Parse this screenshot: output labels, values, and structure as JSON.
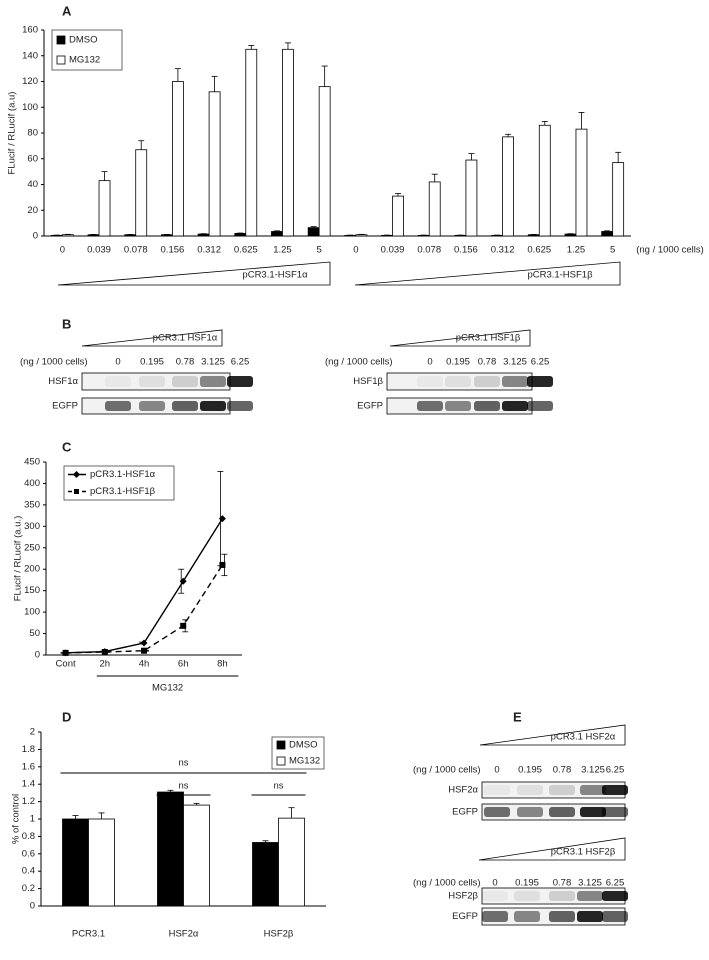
{
  "chart_data": [
    {
      "type": "bar",
      "panel": "A",
      "y_label": "FLucif / RLucif (a.u)",
      "x_unit": "(ng / 1000 cells)",
      "categories": [
        "0",
        "0.039",
        "0.078",
        "0.156",
        "0.312",
        "0.625",
        "1.25",
        "5",
        "0",
        "0.039",
        "0.078",
        "0.156",
        "0.312",
        "0.625",
        "1.25",
        "5"
      ],
      "series": [
        {
          "name": "DMSO",
          "color": "#000000",
          "values": [
            0.5,
            1,
            1,
            1,
            1.5,
            2,
            3.5,
            6.5,
            0.5,
            0.5,
            0.5,
            0.5,
            0.5,
            1,
            1.5,
            3.5
          ],
          "errors": [
            0.2,
            0.2,
            0.2,
            0.2,
            0.3,
            0.3,
            0.5,
            0.8,
            0.2,
            0.2,
            0.2,
            0.2,
            0.2,
            0.2,
            0.3,
            0.5
          ]
        },
        {
          "name": "MG132",
          "color": "#ffffff",
          "values": [
            1,
            43,
            67,
            120,
            112,
            145,
            145,
            116,
            1,
            31,
            42,
            59,
            77,
            86,
            83,
            57
          ],
          "errors": [
            0.3,
            7,
            7,
            10,
            12,
            3,
            5,
            16,
            0.3,
            2,
            6,
            5,
            2,
            3,
            13,
            8
          ]
        }
      ],
      "ylim": [
        0,
        160
      ],
      "yticks": [
        0,
        20,
        40,
        60,
        80,
        100,
        120,
        140,
        160
      ],
      "legend": "upper left",
      "annotations": [
        "pCR3.1-HSF1α",
        "pCR3.1-HSF1β"
      ]
    },
    {
      "type": "line",
      "panel": "C",
      "y_label": "FLucif / RLucif (a.u.)",
      "categories": [
        "Cont",
        "2h",
        "4h",
        "6h",
        "8h"
      ],
      "series": [
        {
          "name": "pCR3.1-HSF1α",
          "color": "#000000",
          "line_style": "solid",
          "marker": "diamond",
          "values": [
            5,
            8,
            28,
            172,
            318
          ],
          "errors": [
            1,
            1,
            2,
            28,
            110
          ]
        },
        {
          "name": "pCR3.1-HSF1β",
          "color": "#000000",
          "line_style": "dashed",
          "marker": "square",
          "values": [
            5,
            7,
            10,
            68,
            210
          ],
          "errors": [
            1,
            1,
            1,
            14,
            25
          ]
        }
      ],
      "ylim": [
        0,
        450
      ],
      "yticks": [
        0,
        50,
        100,
        150,
        200,
        250,
        300,
        350,
        400,
        450
      ],
      "legend": "upper left",
      "annotations": [
        "MG132"
      ]
    },
    {
      "type": "bar",
      "panel": "D",
      "y_label": "% of control",
      "categories": [
        "PCR3.1",
        "HSF2α",
        "HSF2β"
      ],
      "series": [
        {
          "name": "DMSO",
          "color": "#000000",
          "values": [
            1.0,
            1.31,
            0.73
          ],
          "errors": [
            0.04,
            0.02,
            0.02
          ]
        },
        {
          "name": "MG132",
          "color": "#ffffff",
          "values": [
            1.0,
            1.16,
            1.01
          ],
          "errors": [
            0.07,
            0.02,
            0.12
          ]
        }
      ],
      "ylim": [
        0,
        2
      ],
      "yticks": [
        0,
        0.2,
        0.4,
        0.6,
        0.8,
        1,
        1.2,
        1.4,
        1.6,
        1.8,
        2
      ],
      "legend": "upper right",
      "annotations": [
        "ns",
        "ns",
        "ns"
      ]
    }
  ],
  "blots": [
    {
      "panel": "B",
      "items": [
        {
          "construct": "pCR3.1 HSF1α",
          "unit": "(ng / 1000 cells)",
          "lanes": [
            "0",
            "0.195",
            "0.78",
            "3.125",
            "6.25"
          ],
          "rows": [
            "HSF1α",
            "EGFP"
          ]
        },
        {
          "construct": "pCR3.1 HSF1β",
          "unit": "(ng / 1000 cells)",
          "lanes": [
            "0",
            "0.195",
            "0.78",
            "3.125",
            "6.25"
          ],
          "rows": [
            "HSF1β",
            "EGFP"
          ]
        }
      ]
    },
    {
      "panel": "E",
      "items": [
        {
          "construct": "pCR3.1 HSF2α",
          "unit": "(ng / 1000 cells)",
          "lanes": [
            "0",
            "0.195",
            "0.78",
            "3.125",
            "6.25"
          ],
          "rows": [
            "HSF2α",
            "EGFP"
          ]
        },
        {
          "construct": "pCR3.1 HSF2β",
          "unit": "(ng / 1000 cells)",
          "lanes": [
            "0",
            "0.195",
            "0.78",
            "3.125",
            "6.25"
          ],
          "rows": [
            "HSF2β",
            "EGFP"
          ]
        }
      ]
    }
  ]
}
